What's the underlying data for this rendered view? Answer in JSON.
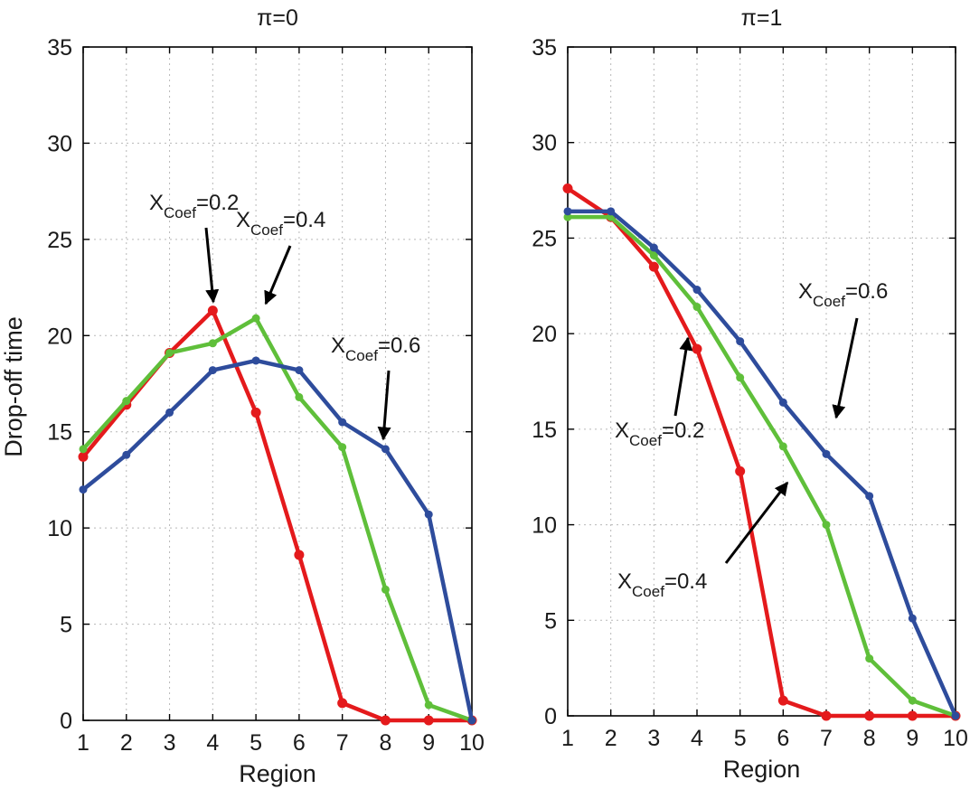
{
  "figure": {
    "ylabel": "Drop-off time",
    "colors": {
      "red": "#e41a1c",
      "green": "#5fbf3a",
      "blue": "#2e4c9c",
      "grid": "#b8b8b8",
      "axis": "#000000"
    }
  },
  "chart_data": [
    {
      "type": "line",
      "title": "π=0",
      "xlabel": "Region",
      "ylabel": "Drop-off time",
      "x": [
        1,
        2,
        3,
        4,
        5,
        6,
        7,
        8,
        9,
        10
      ],
      "xlim": [
        1,
        10
      ],
      "ylim": [
        0,
        35
      ],
      "yticks": [
        0,
        5,
        10,
        15,
        20,
        25,
        30,
        35
      ],
      "grid": true,
      "series": [
        {
          "color": "#e41a1c",
          "values": [
            13.7,
            16.4,
            19.1,
            21.3,
            16.0,
            8.6,
            0.9,
            0.0,
            0.0,
            0.0
          ]
        },
        {
          "color": "#5fbf3a",
          "values": [
            14.1,
            16.6,
            19.1,
            19.6,
            20.9,
            16.8,
            14.2,
            6.8,
            0.8,
            0.0
          ]
        },
        {
          "color": "#2e4c9c",
          "values": [
            12.0,
            13.8,
            16.0,
            18.2,
            18.7,
            18.2,
            15.5,
            14.1,
            10.7,
            0.0
          ]
        }
      ],
      "annotations": [
        {
          "base": "X",
          "sub": "Coef",
          "rest": "=0.2"
        },
        {
          "base": "X",
          "sub": "Coef",
          "rest": "=0.4"
        },
        {
          "base": "X",
          "sub": "Coef",
          "rest": "=0.6"
        }
      ]
    },
    {
      "type": "line",
      "title": "π=1",
      "xlabel": "Region",
      "x": [
        1,
        2,
        3,
        4,
        5,
        6,
        7,
        8,
        9,
        10
      ],
      "xlim": [
        1,
        10
      ],
      "ylim": [
        0,
        35
      ],
      "yticks": [
        0,
        5,
        10,
        15,
        20,
        25,
        30,
        35
      ],
      "grid": true,
      "series": [
        {
          "color": "#e41a1c",
          "values": [
            27.6,
            26.1,
            23.5,
            19.2,
            12.8,
            0.8,
            0.0,
            0.0,
            0.0,
            0.0
          ]
        },
        {
          "color": "#5fbf3a",
          "values": [
            26.1,
            26.1,
            24.1,
            21.4,
            17.7,
            14.1,
            10.0,
            3.0,
            0.8,
            0.0
          ]
        },
        {
          "color": "#2e4c9c",
          "values": [
            26.4,
            26.4,
            24.5,
            22.3,
            19.6,
            16.4,
            13.7,
            11.5,
            5.1,
            0.0
          ]
        }
      ],
      "annotations": [
        {
          "base": "X",
          "sub": "Coef",
          "rest": "=0.6"
        },
        {
          "base": "X",
          "sub": "Coef",
          "rest": "=0.2"
        },
        {
          "base": "X",
          "sub": "Coef",
          "rest": "=0.4"
        }
      ]
    }
  ]
}
